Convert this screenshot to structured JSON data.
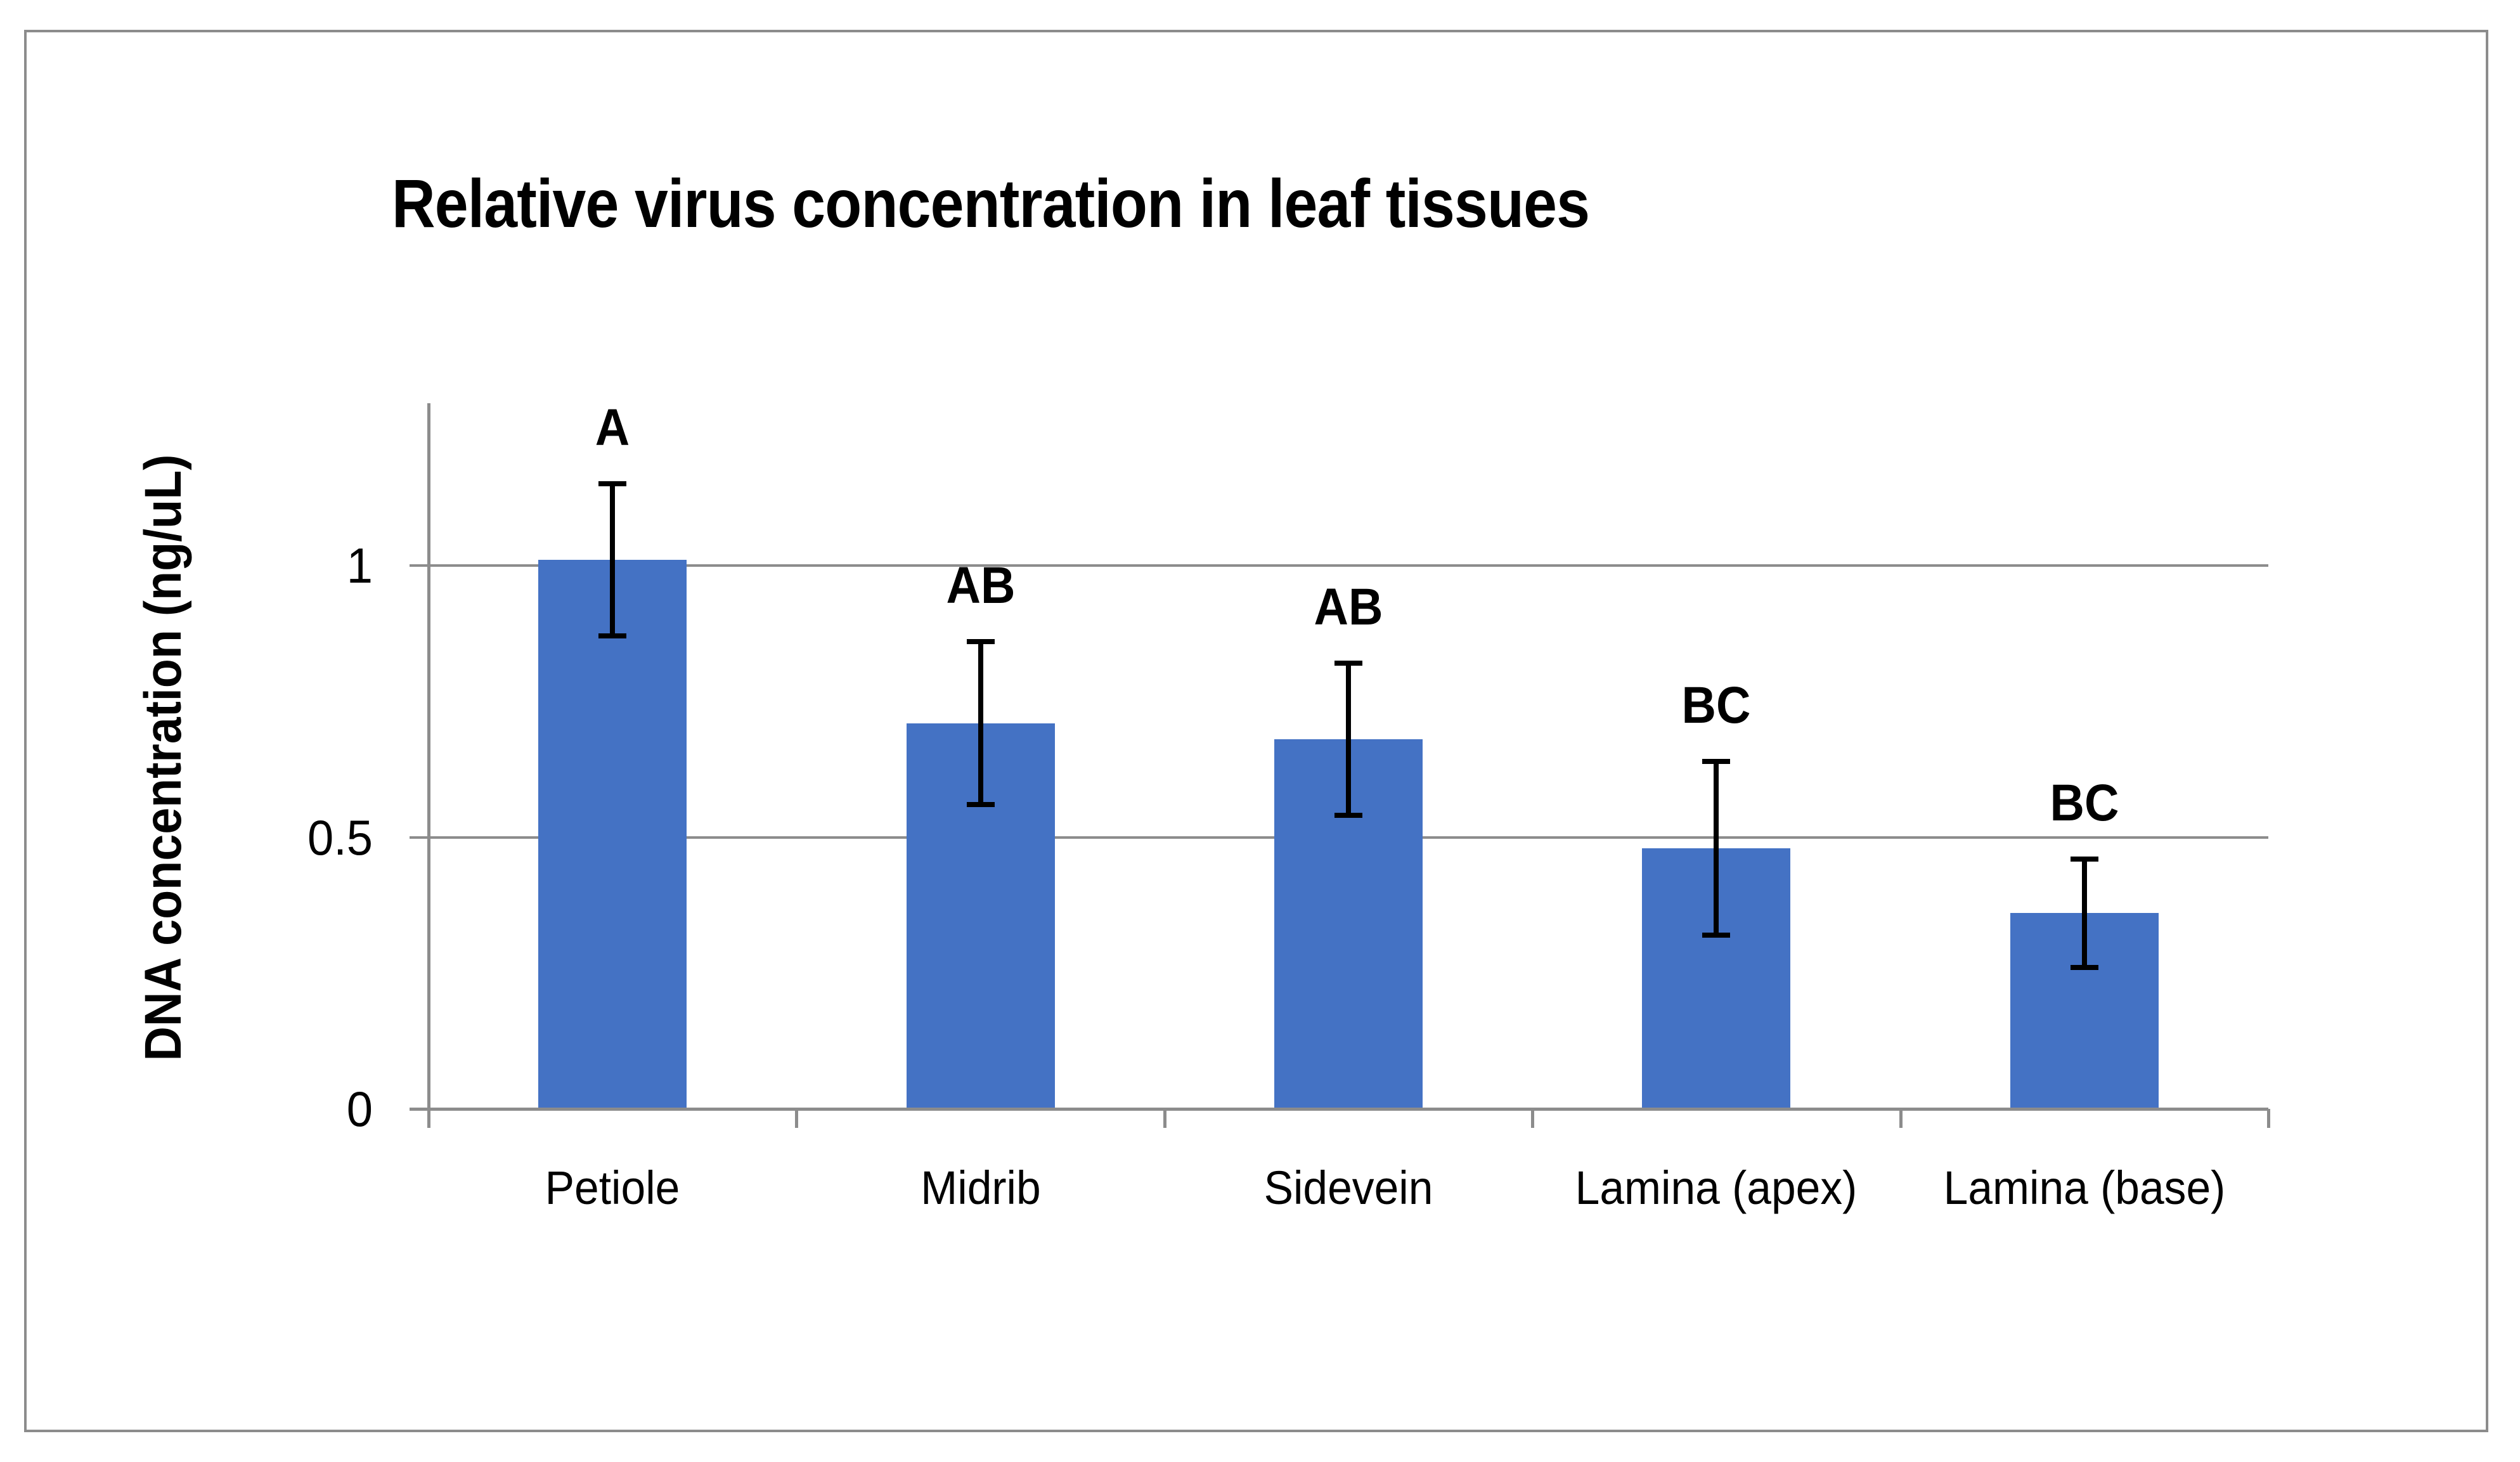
{
  "chart_data": {
    "type": "bar",
    "title": "Relative virus concentration in leaf tissues",
    "xlabel": "",
    "ylabel": "DNA concentration (ng/uL)",
    "categories": [
      "Petiole",
      "Midrib",
      "Sidevein",
      "Lamina (apex)",
      "Lamina (base)"
    ],
    "values": [
      1.01,
      0.71,
      0.68,
      0.48,
      0.36
    ],
    "error_bars": [
      0.14,
      0.15,
      0.14,
      0.16,
      0.1
    ],
    "significance_letters": [
      "A",
      "AB",
      "AB",
      "BC",
      "BC"
    ],
    "y_ticks": [
      0,
      0.5,
      1
    ],
    "y_tick_labels": [
      "0",
      "0.5",
      "1"
    ],
    "ylim": [
      0,
      1.3
    ],
    "grid": "horizontal-major",
    "legend": "none",
    "colors": {
      "bar": "#4472C4",
      "axis": "#8C8C8C",
      "gridline": "#8C8C8C",
      "error_bar": "#000000",
      "frame_border": "#8C8C8C",
      "background": "#FFFFFF",
      "text": "#000000"
    }
  }
}
